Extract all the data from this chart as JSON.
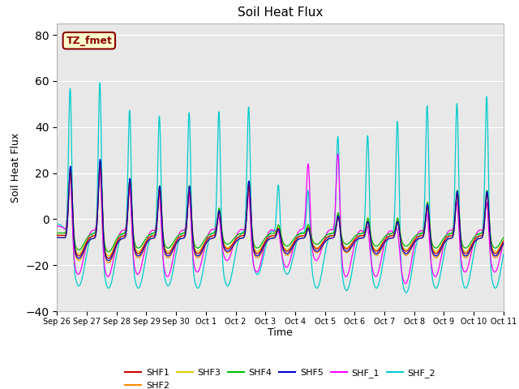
{
  "title": "Soil Heat Flux",
  "xlabel": "Time",
  "ylabel": "Soil Heat Flux",
  "ylim": [
    -40,
    85
  ],
  "xlim": [
    0,
    15
  ],
  "yticks": [
    -40,
    -20,
    0,
    20,
    40,
    60,
    80
  ],
  "xtick_labels": [
    "Sep 26",
    "Sep 27",
    "Sep 28",
    "Sep 29",
    "Sep 30",
    "Oct 1",
    "Oct 2",
    "Oct 3",
    "Oct 4",
    "Oct 5",
    "Oct 6",
    "Oct 7",
    "Oct 8",
    "Oct 9",
    "Oct 10",
    "Oct 11"
  ],
  "series_colors": {
    "SHF1": "#cc0000",
    "SHF2": "#ff8800",
    "SHF3": "#ddcc00",
    "SHF4": "#00bb00",
    "SHF5": "#0000cc",
    "SHF_1": "#ff00ff",
    "SHF_2": "#00cccc"
  },
  "annotation_text": "TZ_fmet",
  "annotation_color": "#8B0000",
  "annotation_bg": "#ffffcc",
  "background_color": "#e8e8e8",
  "grid_color": "#ffffff",
  "title_fontsize": 11
}
